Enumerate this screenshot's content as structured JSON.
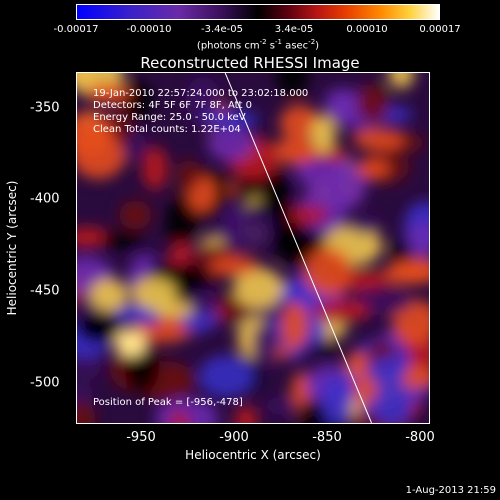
{
  "colorbar": {
    "ticks": [
      "-0.00017",
      "-0.00010",
      "-3.4e-05",
      "3.4e-05",
      "0.00010",
      "0.00017"
    ],
    "units": "(photons cm",
    "units_sup1": "-2",
    "units_mid": " s",
    "units_sup2": "-1",
    "units_end": " asec",
    "units_sup3": "-2",
    "units_close": ")"
  },
  "chart_data": {
    "type": "heatmap",
    "title": "Reconstructed RHESSI Image",
    "xlabel": "Heliocentric X (arcsec)",
    "ylabel": "Heliocentric Y (arcsec)",
    "xlim": [
      -985,
      -795
    ],
    "ylim": [
      -522,
      -330
    ],
    "xticks": [
      "-950",
      "-900",
      "-850",
      "-800"
    ],
    "yticks": [
      "-350",
      "-400",
      "-450",
      "-500"
    ],
    "color_range": [
      -0.00017,
      0.00017
    ],
    "peak": [
      -956,
      -478
    ],
    "limb_line": [
      [
        -905,
        -330
      ],
      [
        -826,
        -522
      ]
    ],
    "colors": {
      "limb": "#ffffff",
      "text": "#ffffff"
    },
    "annotations": {
      "date": "19-Jan-2010 22:57:24.000 to 23:02:18.000",
      "detectors": "Detectors: 4F 5F 6F 7F 8F, Att 0",
      "energy": "Energy Range: 25.0 - 50.0 keV",
      "clean": "Clean      Total counts: 1.22E+04",
      "peak": "Position of Peak = [-956,-478]"
    }
  },
  "timestamp": "1-Aug-2013 21:59"
}
